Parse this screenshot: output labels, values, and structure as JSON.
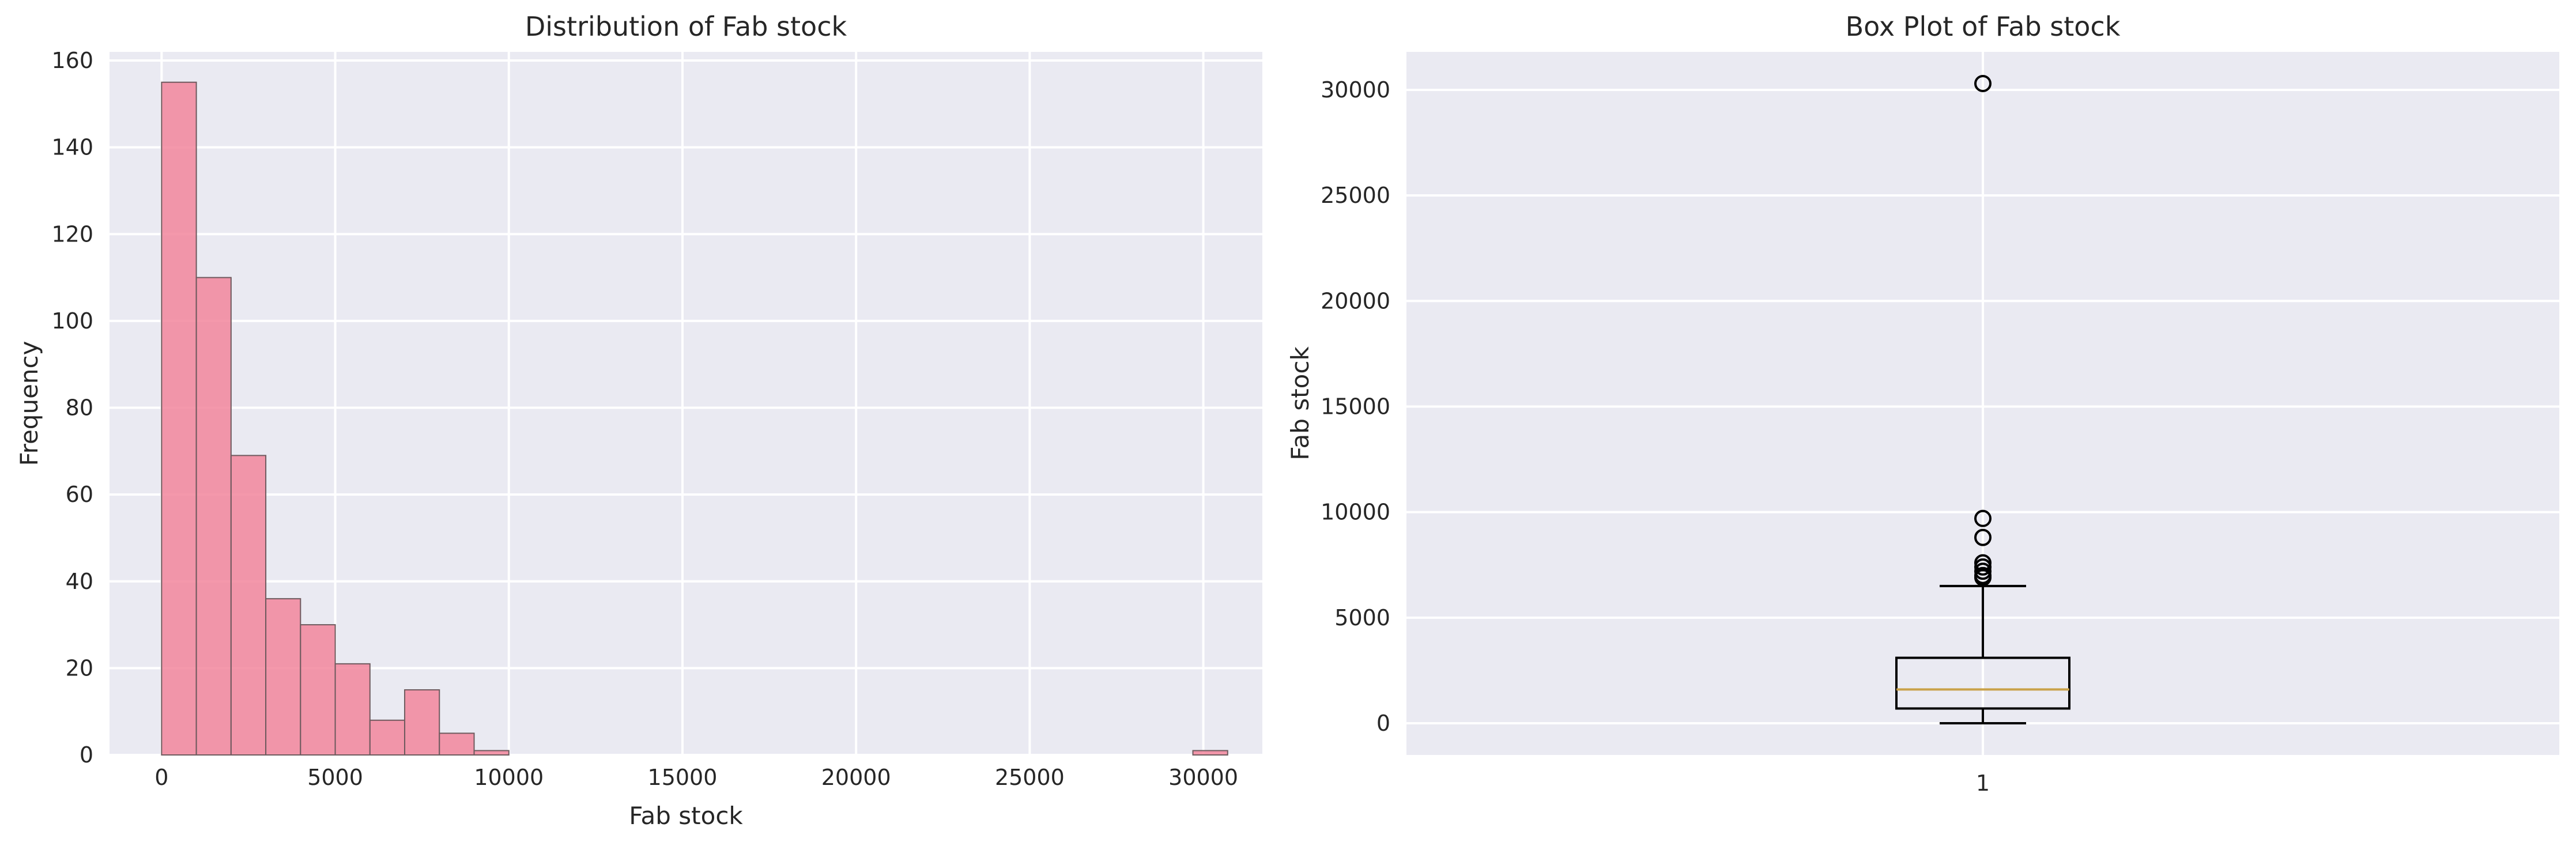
{
  "chart_data": [
    {
      "type": "bar",
      "title": "Distribution of Fab stock",
      "xlabel": "Fab stock",
      "ylabel": "Frequency",
      "xlim": [
        -1500,
        31700
      ],
      "ylim": [
        0,
        162
      ],
      "grid": true,
      "color": "#f2869c",
      "edge_color": "#6e5a5e",
      "bin_width": 1000,
      "bins": [
        {
          "start": 0,
          "end": 1000,
          "count": 155
        },
        {
          "start": 1000,
          "end": 2000,
          "count": 110
        },
        {
          "start": 2000,
          "end": 3000,
          "count": 69
        },
        {
          "start": 3000,
          "end": 4000,
          "count": 36
        },
        {
          "start": 4000,
          "end": 5000,
          "count": 30
        },
        {
          "start": 5000,
          "end": 6000,
          "count": 21
        },
        {
          "start": 6000,
          "end": 7000,
          "count": 8
        },
        {
          "start": 7000,
          "end": 8000,
          "count": 15
        },
        {
          "start": 8000,
          "end": 9000,
          "count": 5
        },
        {
          "start": 9000,
          "end": 10000,
          "count": 1
        },
        {
          "start": 29700,
          "end": 30700,
          "count": 1
        }
      ],
      "xticks": [
        0,
        5000,
        10000,
        15000,
        20000,
        25000,
        30000
      ],
      "yticks": [
        0,
        20,
        40,
        60,
        80,
        100,
        120,
        140,
        160
      ]
    },
    {
      "type": "box",
      "title": "Box Plot of Fab stock",
      "xlabel": "",
      "ylabel": "Fab stock",
      "category": "1",
      "ylim": [
        -1500,
        31800
      ],
      "grid": true,
      "median_color": "#c9a24a",
      "stats": {
        "whisker_low": 0,
        "q1": 700,
        "median": 1600,
        "q3": 3100,
        "whisker_high": 6500
      },
      "outliers": [
        6900,
        7000,
        7200,
        7400,
        7600,
        8800,
        9700,
        30300
      ],
      "yticks": [
        0,
        5000,
        10000,
        15000,
        20000,
        25000,
        30000
      ]
    }
  ]
}
